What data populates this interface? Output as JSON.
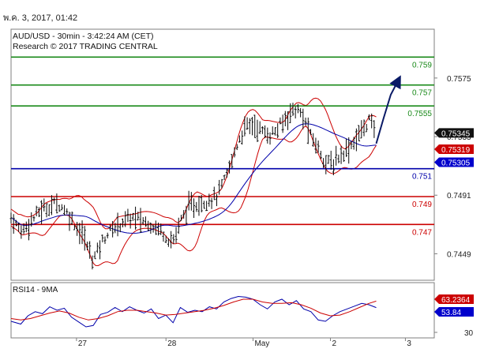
{
  "timestamp": "พ.ค. 3, 2017, 01:42",
  "colors": {
    "green": "#1a8a1a",
    "red": "#cc0000",
    "blue": "#0000aa",
    "price": "#0a0a0a",
    "band": "#cc0000",
    "ma": "#0000aa",
    "rsi": "#0000aa",
    "rsi_ma": "#cc0000",
    "frame": "#7f7f7f",
    "tag_dark": "#111111",
    "tag_red": "#cc0000",
    "tag_blue": "#0000cc"
  },
  "chart_data": [
    {
      "type": "line",
      "header_line1": "AUD/USD - 30min - 3:42:24 AM (CET)",
      "header_line2": "Research © 2017 TRADING CENTRAL",
      "y_ticks": [
        "0.7575",
        "0.7533",
        "0.7491",
        "0.7449"
      ],
      "x_ticks": [
        "27",
        "28",
        "May",
        "2",
        "3"
      ],
      "ylim": [
        0.743,
        0.761
      ],
      "levels": [
        {
          "label": "0.759",
          "value": 0.759,
          "color": "green"
        },
        {
          "label": "0.757",
          "value": 0.757,
          "color": "green"
        },
        {
          "label": "0.7555",
          "value": 0.7555,
          "color": "green"
        },
        {
          "label": "0.751",
          "value": 0.751,
          "color": "blue"
        },
        {
          "label": "0.749",
          "value": 0.749,
          "color": "red"
        },
        {
          "label": "0.747",
          "value": 0.747,
          "color": "red"
        }
      ],
      "price_tags": [
        {
          "label": "0.75345",
          "value": 0.75345,
          "style": "dark"
        },
        {
          "label": "0.75319",
          "value": 0.75319,
          "style": "red"
        },
        {
          "label": "0.75305",
          "value": 0.75305,
          "style": "blue"
        }
      ],
      "price_path": [
        [
          0,
          0.7475
        ],
        [
          4,
          0.7465
        ],
        [
          8,
          0.7472
        ],
        [
          12,
          0.748
        ],
        [
          16,
          0.7483
        ],
        [
          19,
          0.7486
        ],
        [
          22,
          0.7481
        ],
        [
          25,
          0.7474
        ],
        [
          28,
          0.7466
        ],
        [
          30,
          0.7462
        ],
        [
          32,
          0.7452
        ],
        [
          34,
          0.7445
        ],
        [
          37,
          0.7456
        ],
        [
          40,
          0.7464
        ],
        [
          43,
          0.7468
        ],
        [
          46,
          0.7472
        ],
        [
          50,
          0.7475
        ],
        [
          54,
          0.7473
        ],
        [
          58,
          0.747
        ],
        [
          62,
          0.7466
        ],
        [
          65,
          0.746
        ],
        [
          67,
          0.7458
        ],
        [
          70,
          0.7472
        ],
        [
          73,
          0.7482
        ],
        [
          76,
          0.7484
        ],
        [
          79,
          0.7486
        ],
        [
          82,
          0.7488
        ],
        [
          85,
          0.749
        ],
        [
          88,
          0.75
        ],
        [
          91,
          0.7514
        ],
        [
          94,
          0.753
        ],
        [
          97,
          0.754
        ],
        [
          100,
          0.7542
        ],
        [
          103,
          0.7538
        ],
        [
          106,
          0.7534
        ],
        [
          109,
          0.7536
        ],
        [
          112,
          0.7542
        ],
        [
          115,
          0.755
        ],
        [
          118,
          0.7553
        ],
        [
          121,
          0.7546
        ],
        [
          124,
          0.7533
        ],
        [
          127,
          0.7525
        ],
        [
          130,
          0.7515
        ],
        [
          133,
          0.7513
        ],
        [
          136,
          0.752
        ],
        [
          139,
          0.7524
        ],
        [
          142,
          0.753
        ],
        [
          145,
          0.7537
        ],
        [
          148,
          0.7545
        ],
        [
          151,
          0.7536
        ]
      ],
      "forecast_path": [
        [
          151,
          0.7528
        ],
        [
          154,
          0.7546
        ],
        [
          157,
          0.7563
        ],
        [
          160,
          0.7573
        ]
      ],
      "x_tick_positions": [
        14,
        51,
        87,
        119,
        150
      ],
      "x_max": 175
    },
    {
      "type": "line",
      "header": "RSI14 - 9MA",
      "y_ticks": [
        "30"
      ],
      "ylim": [
        10,
        90
      ],
      "value_tags": [
        {
          "label": "63.2364",
          "value": 63.2364,
          "style": "red"
        },
        {
          "label": "53.84",
          "value": 53.84,
          "style": "blue"
        }
      ],
      "rsi": [
        [
          0,
          34
        ],
        [
          4,
          30
        ],
        [
          7,
          42
        ],
        [
          10,
          48
        ],
        [
          13,
          45
        ],
        [
          16,
          55
        ],
        [
          19,
          50
        ],
        [
          22,
          53
        ],
        [
          25,
          40
        ],
        [
          28,
          33
        ],
        [
          31,
          26
        ],
        [
          34,
          28
        ],
        [
          37,
          44
        ],
        [
          40,
          47
        ],
        [
          43,
          54
        ],
        [
          46,
          48
        ],
        [
          49,
          55
        ],
        [
          52,
          50
        ],
        [
          55,
          46
        ],
        [
          58,
          52
        ],
        [
          61,
          38
        ],
        [
          64,
          43
        ],
        [
          67,
          32
        ],
        [
          70,
          54
        ],
        [
          73,
          47
        ],
        [
          76,
          50
        ],
        [
          79,
          48
        ],
        [
          82,
          55
        ],
        [
          85,
          52
        ],
        [
          88,
          62
        ],
        [
          91,
          67
        ],
        [
          94,
          70
        ],
        [
          97,
          69
        ],
        [
          100,
          66
        ],
        [
          103,
          58
        ],
        [
          106,
          52
        ],
        [
          109,
          62
        ],
        [
          112,
          66
        ],
        [
          115,
          58
        ],
        [
          118,
          64
        ],
        [
          121,
          52
        ],
        [
          124,
          48
        ],
        [
          127,
          36
        ],
        [
          130,
          34
        ],
        [
          133,
          42
        ],
        [
          136,
          48
        ],
        [
          139,
          52
        ],
        [
          142,
          56
        ],
        [
          145,
          60
        ],
        [
          148,
          58
        ],
        [
          151,
          53.84
        ]
      ],
      "rsi_ma": [
        [
          0,
          38
        ],
        [
          4,
          36
        ],
        [
          8,
          38
        ],
        [
          12,
          42
        ],
        [
          16,
          46
        ],
        [
          20,
          49
        ],
        [
          24,
          46
        ],
        [
          28,
          40
        ],
        [
          32,
          36
        ],
        [
          36,
          38
        ],
        [
          40,
          42
        ],
        [
          44,
          48
        ],
        [
          48,
          50
        ],
        [
          52,
          50
        ],
        [
          56,
          48
        ],
        [
          60,
          46
        ],
        [
          64,
          43
        ],
        [
          68,
          44
        ],
        [
          72,
          46
        ],
        [
          76,
          48
        ],
        [
          80,
          50
        ],
        [
          84,
          53
        ],
        [
          88,
          57
        ],
        [
          92,
          62
        ],
        [
          96,
          66
        ],
        [
          100,
          66
        ],
        [
          104,
          62
        ],
        [
          108,
          60
        ],
        [
          112,
          60
        ],
        [
          116,
          61
        ],
        [
          120,
          58
        ],
        [
          124,
          53
        ],
        [
          128,
          46
        ],
        [
          132,
          42
        ],
        [
          136,
          43
        ],
        [
          140,
          48
        ],
        [
          144,
          54
        ],
        [
          148,
          60
        ],
        [
          151,
          63.2364
        ]
      ]
    }
  ]
}
